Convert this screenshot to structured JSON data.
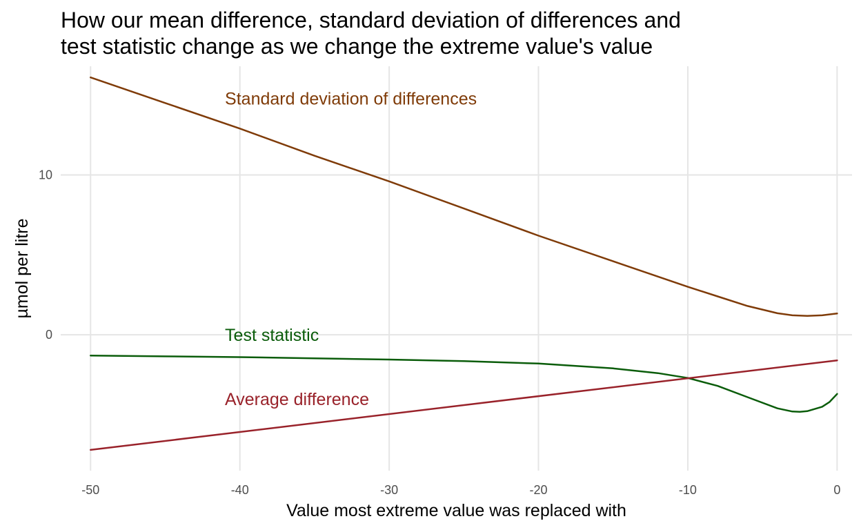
{
  "chart_data": {
    "type": "line",
    "title_lines": [
      "How our mean difference, standard deviation of differences and",
      "test statistic change as we change the extreme value's value"
    ],
    "xlabel": "Value most extreme value was replaced with",
    "ylabel": "µmol per litre",
    "xlim": [
      -52,
      1
    ],
    "ylim": [
      -8.5,
      16.8
    ],
    "x_ticks": [
      -50,
      -40,
      -30,
      -20,
      -10,
      0
    ],
    "x_tick_labels": [
      "-50",
      "-40",
      "-30",
      "-20",
      "-10",
      "0"
    ],
    "y_ticks": [
      0,
      10
    ],
    "y_tick_labels": [
      "0",
      "10"
    ],
    "grid": true,
    "legend": "none",
    "series": [
      {
        "name": "Standard deviation of differences",
        "color": "#7f3b08",
        "x": [
          -50,
          -45,
          -40,
          -35,
          -30,
          -25,
          -20,
          -15,
          -10,
          -8,
          -6,
          -4,
          -3,
          -2,
          -1,
          0
        ],
        "y": [
          16.1,
          14.5,
          12.9,
          11.2,
          9.6,
          7.9,
          6.2,
          4.6,
          3.0,
          2.4,
          1.8,
          1.35,
          1.22,
          1.18,
          1.22,
          1.33
        ]
      },
      {
        "name": "Test statistic",
        "color": "#0a5c0a",
        "x": [
          -50,
          -45,
          -40,
          -35,
          -30,
          -25,
          -20,
          -15,
          -12,
          -10,
          -8,
          -6,
          -4,
          -3,
          -2.5,
          -2,
          -1,
          -0.5,
          0
        ],
        "y": [
          -1.3,
          -1.35,
          -1.4,
          -1.47,
          -1.55,
          -1.65,
          -1.8,
          -2.1,
          -2.4,
          -2.7,
          -3.2,
          -3.9,
          -4.6,
          -4.8,
          -4.82,
          -4.78,
          -4.5,
          -4.2,
          -3.7
        ]
      },
      {
        "name": "Average difference",
        "color": "#99222a",
        "x": [
          -50,
          0
        ],
        "y": [
          -7.2,
          -1.6
        ]
      }
    ],
    "annotations": [
      {
        "text": "Standard deviation of differences",
        "x": -41,
        "y": 14.8,
        "color": "#7f3b08"
      },
      {
        "text": "Test statistic",
        "x": -41,
        "y": 0,
        "color": "#0a5c0a"
      },
      {
        "text": "Average difference",
        "x": -41,
        "y": -4.0,
        "color": "#99222a"
      }
    ]
  }
}
